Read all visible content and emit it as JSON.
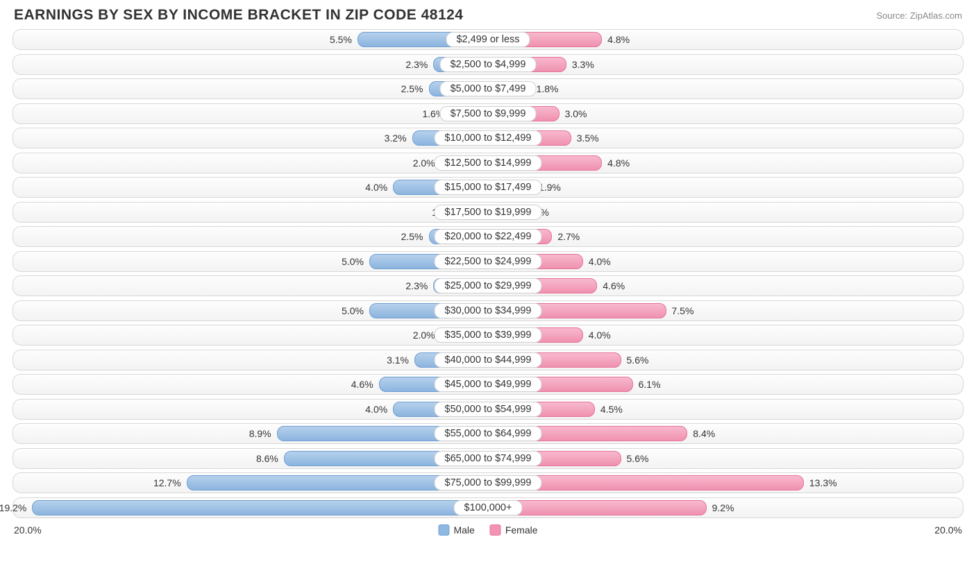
{
  "title": "EARNINGS BY SEX BY INCOME BRACKET IN ZIP CODE 48124",
  "source": "Source: ZipAtlas.com",
  "chart": {
    "type": "diverging-bar",
    "axis_max": 20.0,
    "axis_label_left": "20.0%",
    "axis_label_right": "20.0%",
    "male_color": "#8fb8e3",
    "male_border": "#6f9fd2",
    "female_color": "#f494b3",
    "female_border": "#e57399",
    "track_bg_top": "#fdfdfd",
    "track_bg_bottom": "#f3f3f3",
    "track_border": "#d7d7d7",
    "center_label_bg": "#ffffff",
    "center_label_border": "#cfcfcf",
    "text_color": "#333333",
    "title_color": "#323232",
    "source_color": "#888888",
    "legend": {
      "male": "Male",
      "female": "Female"
    },
    "rows": [
      {
        "label": "$2,499 or less",
        "male": 5.5,
        "female": 4.8
      },
      {
        "label": "$2,500 to $4,999",
        "male": 2.3,
        "female": 3.3
      },
      {
        "label": "$5,000 to $7,499",
        "male": 2.5,
        "female": 1.8
      },
      {
        "label": "$7,500 to $9,999",
        "male": 1.6,
        "female": 3.0
      },
      {
        "label": "$10,000 to $12,499",
        "male": 3.2,
        "female": 3.5
      },
      {
        "label": "$12,500 to $14,999",
        "male": 2.0,
        "female": 4.8
      },
      {
        "label": "$15,000 to $17,499",
        "male": 4.0,
        "female": 1.9
      },
      {
        "label": "$17,500 to $19,999",
        "male": 1.2,
        "female": 1.4
      },
      {
        "label": "$20,000 to $22,499",
        "male": 2.5,
        "female": 2.7
      },
      {
        "label": "$22,500 to $24,999",
        "male": 5.0,
        "female": 4.0
      },
      {
        "label": "$25,000 to $29,999",
        "male": 2.3,
        "female": 4.6
      },
      {
        "label": "$30,000 to $34,999",
        "male": 5.0,
        "female": 7.5
      },
      {
        "label": "$35,000 to $39,999",
        "male": 2.0,
        "female": 4.0
      },
      {
        "label": "$40,000 to $44,999",
        "male": 3.1,
        "female": 5.6
      },
      {
        "label": "$45,000 to $49,999",
        "male": 4.6,
        "female": 6.1
      },
      {
        "label": "$50,000 to $54,999",
        "male": 4.0,
        "female": 4.5
      },
      {
        "label": "$55,000 to $64,999",
        "male": 8.9,
        "female": 8.4
      },
      {
        "label": "$65,000 to $74,999",
        "male": 8.6,
        "female": 5.6
      },
      {
        "label": "$75,000 to $99,999",
        "male": 12.7,
        "female": 13.3
      },
      {
        "label": "$100,000+",
        "male": 19.2,
        "female": 9.2
      }
    ]
  }
}
